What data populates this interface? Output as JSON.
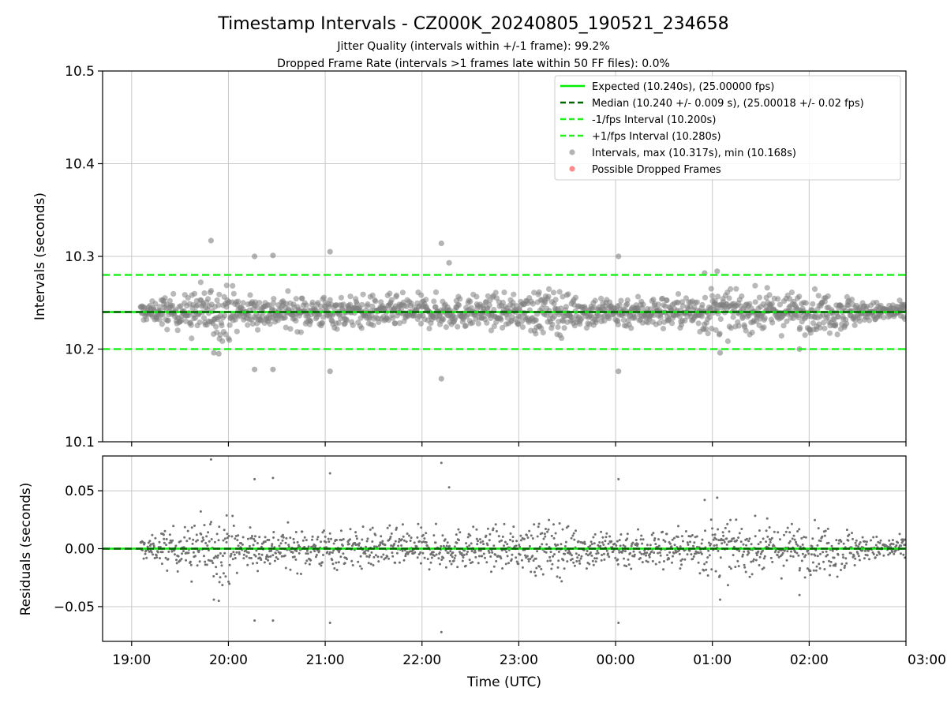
{
  "title": "Timestamp Intervals - CZ000K_20240805_190521_234658",
  "subtitle_lines": [
    "Jitter Quality (intervals within +/-1 frame): 99.2%",
    "Dropped Frame Rate (intervals >1 frames late within 50 FF files): 0.0%"
  ],
  "colors": {
    "expected": "#00ee00",
    "median": "#006400",
    "fps_bounds": "#22ee22",
    "intervals": "#808080",
    "dropped": "#ff4040",
    "grid": "#c8c8c8"
  },
  "chart_data": [
    {
      "type": "scatter",
      "panel": "intervals",
      "ylabel": "Intervals (seconds)",
      "xlabel": "",
      "ylim": [
        10.1,
        10.5
      ],
      "yticks": [
        "10.1",
        "10.2",
        "10.3",
        "10.4",
        "10.5"
      ],
      "xlim_hours": [
        18.7,
        27.0
      ],
      "xticks": [
        "19:00",
        "20:00",
        "21:00",
        "22:00",
        "23:00",
        "00:00",
        "01:00",
        "02:00",
        "03:00"
      ],
      "grid": true,
      "legend_position": "top-right",
      "legend": [
        {
          "label": "Expected (10.240s), (25.00000 fps)",
          "kind": "solid-line",
          "color": "#00ee00"
        },
        {
          "label": "Median (10.240 +/- 0.009 s), (25.00018 +/- 0.02 fps)",
          "kind": "dashed-line",
          "color": "#006400"
        },
        {
          "label": "-1/fps Interval (10.200s)",
          "kind": "dashed-line",
          "color": "#22ee22"
        },
        {
          "label": "+1/fps Interval (10.280s)",
          "kind": "dashed-line",
          "color": "#22ee22"
        },
        {
          "label": "Intervals, max (10.317s), min (10.168s)",
          "kind": "marker",
          "color": "#808080"
        },
        {
          "label": "Possible Dropped Frames",
          "kind": "marker",
          "color": "#ff4040"
        }
      ],
      "reference_lines": {
        "expected": 10.24,
        "median": 10.24,
        "minus_1fps": 10.2,
        "plus_1fps": 10.28
      },
      "time_span_hours": [
        19.09,
        27.0
      ],
      "outliers": [
        {
          "t": 19.82,
          "y": 10.317
        },
        {
          "t": 19.85,
          "y": 10.196
        },
        {
          "t": 19.9,
          "y": 10.195
        },
        {
          "t": 20.27,
          "y": 10.3
        },
        {
          "t": 20.27,
          "y": 10.178
        },
        {
          "t": 20.46,
          "y": 10.301
        },
        {
          "t": 20.46,
          "y": 10.178
        },
        {
          "t": 21.05,
          "y": 10.305
        },
        {
          "t": 21.05,
          "y": 10.176
        },
        {
          "t": 22.2,
          "y": 10.314
        },
        {
          "t": 22.2,
          "y": 10.168
        },
        {
          "t": 22.28,
          "y": 10.293
        },
        {
          "t": 24.03,
          "y": 10.3
        },
        {
          "t": 24.03,
          "y": 10.176
        },
        {
          "t": 24.92,
          "y": 10.282
        },
        {
          "t": 25.05,
          "y": 10.284
        },
        {
          "t": 25.08,
          "y": 10.196
        },
        {
          "t": 25.9,
          "y": 10.2
        }
      ]
    },
    {
      "type": "scatter",
      "panel": "residuals",
      "ylabel": "Residuals (seconds)",
      "xlabel": "Time (UTC)",
      "ylim": [
        -0.08,
        0.08
      ],
      "yticks": [
        "−0.05",
        "0.00",
        "0.05"
      ],
      "ytick_values": [
        -0.05,
        0.0,
        0.05
      ],
      "xlim_hours": [
        18.7,
        27.0
      ],
      "xticks": [
        "19:00",
        "20:00",
        "21:00",
        "22:00",
        "23:00",
        "00:00",
        "01:00",
        "02:00",
        "03:00"
      ],
      "grid": true,
      "reference_line": 0.0
    }
  ]
}
